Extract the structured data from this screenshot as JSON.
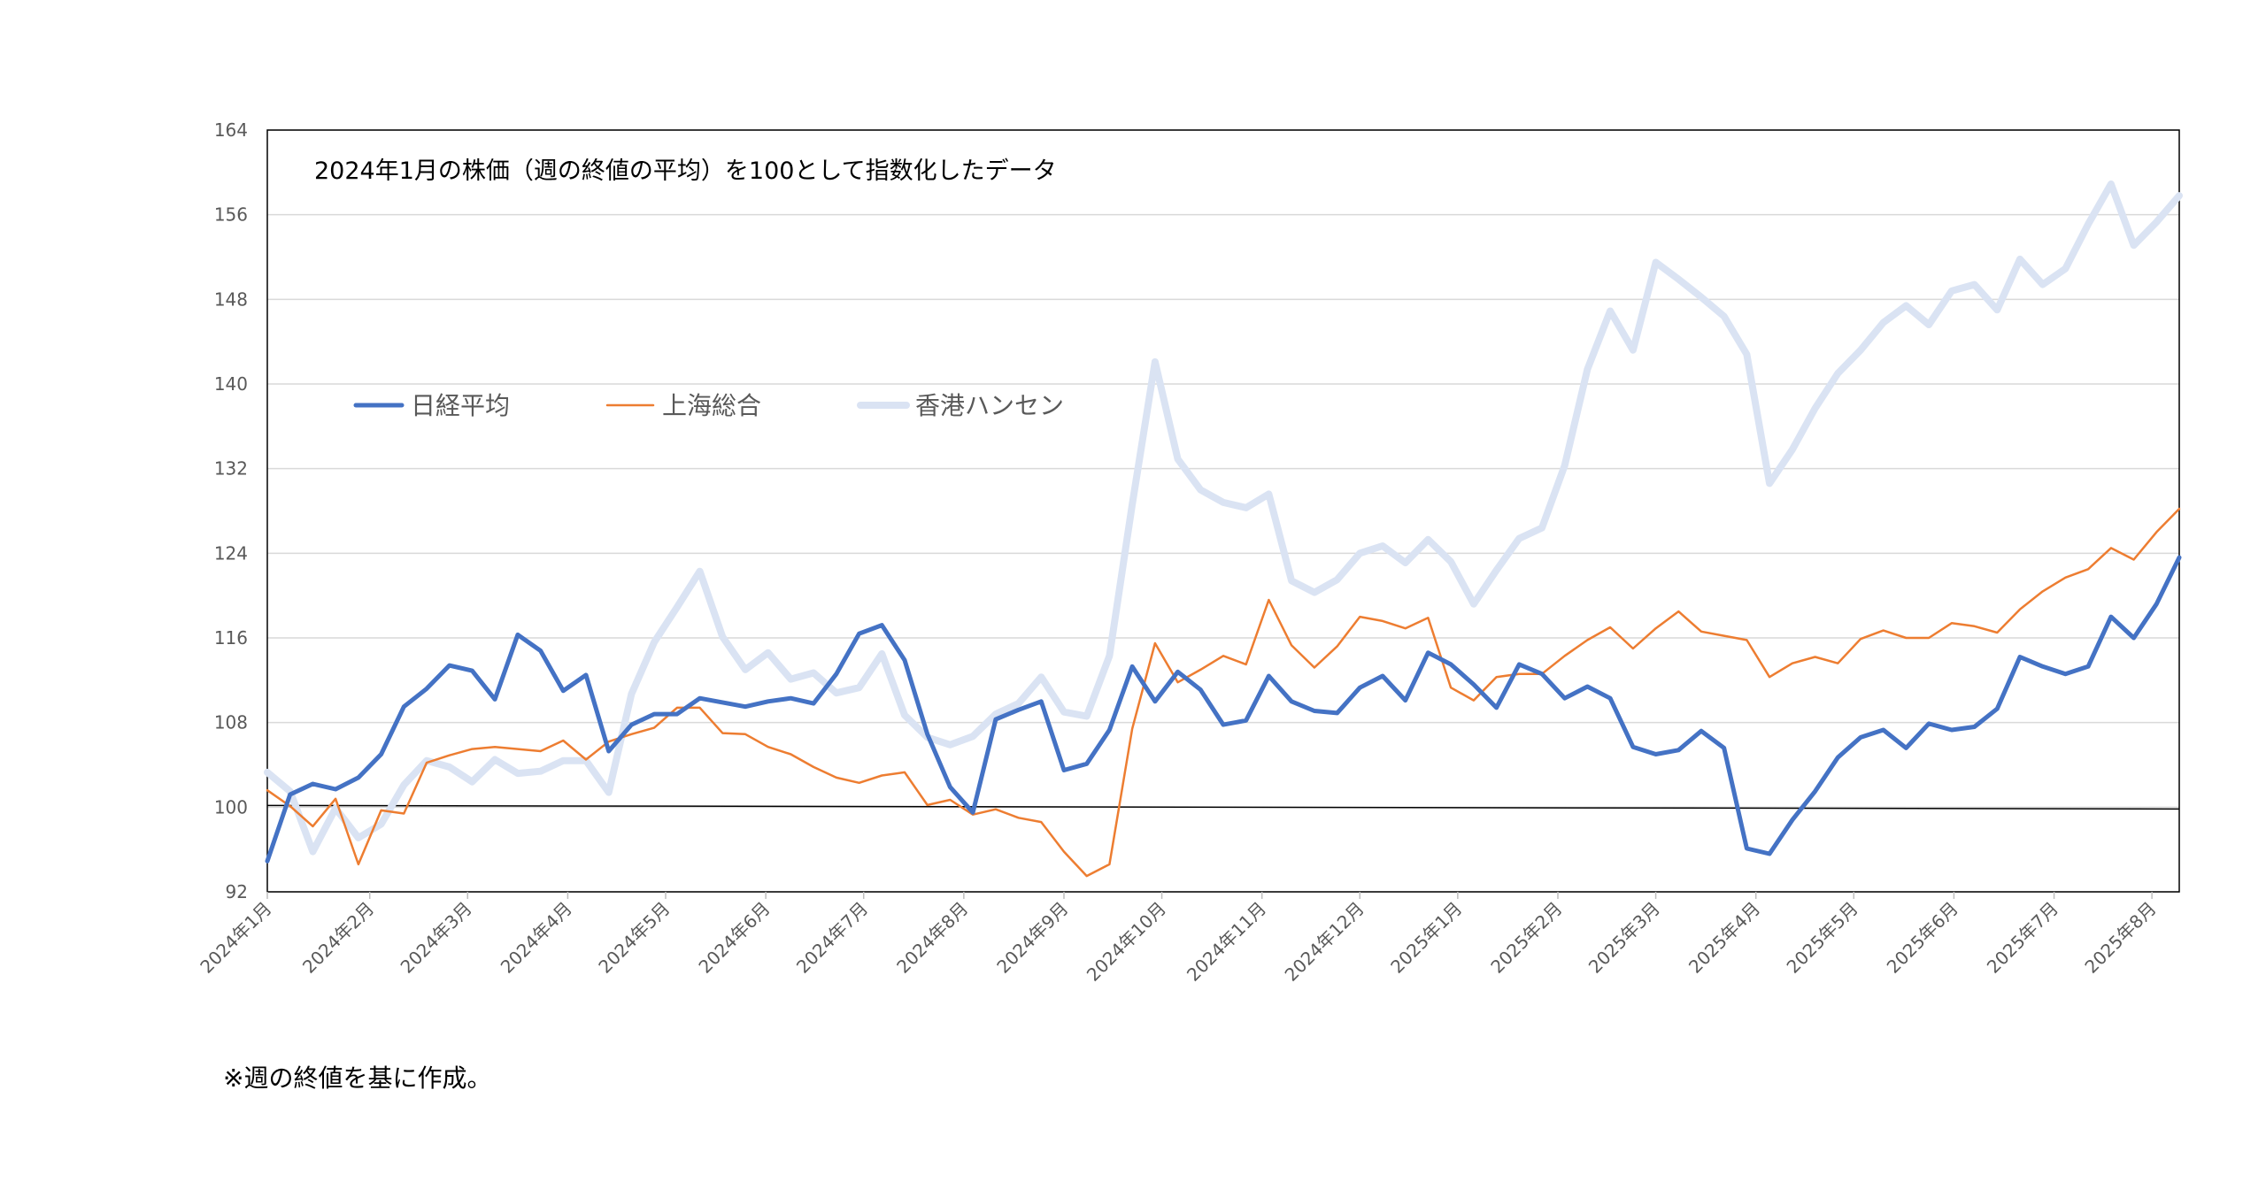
{
  "chart_data": {
    "type": "line",
    "title": "2024年1月の株価（週の終値の平均）を100として指数化したデータ",
    "ylim": [
      92,
      164
    ],
    "yticks": [
      92,
      100,
      108,
      116,
      124,
      132,
      140,
      148,
      156,
      164
    ],
    "grid": true,
    "legend_position": "upper-left",
    "reference_line": 100,
    "x_month_labels": [
      "2024年1月",
      "2024年2月",
      "2024年3月",
      "2024年4月",
      "2024年5月",
      "2024年6月",
      "2024年7月",
      "2024年8月",
      "2024年9月",
      "2024年10月",
      "2024年11月",
      "2024年12月",
      "2025年1月",
      "2025年2月",
      "2025年3月",
      "2025年4月",
      "2025年5月",
      "2025年6月",
      "2025年7月",
      "2025年8月"
    ],
    "x_month_week_index": [
      0,
      4.5,
      8.8,
      13.2,
      17.5,
      21.9,
      26.2,
      30.6,
      35,
      39.3,
      43.7,
      48,
      52.3,
      56.7,
      61,
      65.4,
      69.7,
      74.1,
      78.5,
      82.8
    ],
    "series": [
      {
        "name": "日経平均",
        "color": "#4472c4",
        "width": 5,
        "values": [
          94.9,
          101.2,
          102.2,
          101.7,
          102.8,
          105,
          109.5,
          111.2,
          113.4,
          112.9,
          110.2,
          116.3,
          114.8,
          111,
          112.5,
          105.3,
          107.8,
          108.8,
          108.8,
          110.3,
          109.9,
          109.5,
          110,
          110.3,
          109.8,
          112.6,
          116.4,
          117.2,
          113.9,
          106.9,
          101.9,
          99.5,
          108.3,
          109.2,
          110,
          103.5,
          104.1,
          107.3,
          113.3,
          110,
          112.8,
          111.1,
          107.8,
          108.2,
          112.4,
          110,
          109.1,
          108.9,
          111.3,
          112.4,
          110.1,
          114.6,
          113.5,
          111.6,
          109.4,
          113.5,
          112.6,
          110.3,
          111.4,
          110.3,
          105.7,
          105,
          105.4,
          107.2,
          105.6,
          96.1,
          95.6,
          98.8,
          101.5,
          104.7,
          106.6,
          107.3,
          105.6,
          107.9,
          107.3,
          107.6,
          109.3,
          114.2,
          113.3,
          112.6,
          113.3,
          118,
          116,
          119.2,
          123.6
        ]
      },
      {
        "name": "上海総合",
        "color": "#ed7d31",
        "width": 2.5,
        "values": [
          101.6,
          100.1,
          98.2,
          100.8,
          94.6,
          99.7,
          99.4,
          104.2,
          104.9,
          105.5,
          105.7,
          105.5,
          105.3,
          106.3,
          104.5,
          106.2,
          106.9,
          107.5,
          109.4,
          109.4,
          107,
          106.9,
          105.7,
          105,
          103.8,
          102.8,
          102.3,
          103,
          103.3,
          100.2,
          100.7,
          99.3,
          99.8,
          99,
          98.6,
          95.8,
          93.5,
          94.6,
          107.4,
          115.5,
          111.8,
          113,
          114.3,
          113.5,
          119.6,
          115.3,
          113.2,
          115.2,
          118,
          117.6,
          116.9,
          117.9,
          111.3,
          110.1,
          112.3,
          112.6,
          112.6,
          114.3,
          115.8,
          117,
          115,
          116.9,
          118.5,
          116.6,
          116.2,
          115.8,
          112.3,
          113.6,
          114.2,
          113.6,
          115.9,
          116.7,
          116,
          116,
          117.4,
          117.1,
          116.5,
          118.7,
          120.4,
          121.7,
          122.5,
          124.5,
          123.4,
          126,
          128.2
        ]
      },
      {
        "name": "香港ハンセン",
        "color": "#dae3f3",
        "width": 8,
        "values": [
          103.3,
          101.5,
          95.8,
          99.9,
          97.1,
          98.4,
          102.1,
          104.4,
          103.8,
          102.4,
          104.5,
          103.2,
          103.4,
          104.4,
          104.4,
          101.4,
          110.7,
          115.6,
          118.9,
          122.3,
          116.1,
          113,
          114.6,
          112.1,
          112.7,
          110.8,
          111.3,
          114.5,
          108.7,
          106.6,
          105.9,
          106.7,
          108.8,
          109.8,
          112.3,
          109,
          108.6,
          114.3,
          128.6,
          142.1,
          132.9,
          130,
          128.8,
          128.3,
          129.6,
          121.4,
          120.3,
          121.5,
          124,
          124.7,
          123.1,
          125.3,
          123.2,
          119.2,
          122.4,
          125.4,
          126.4,
          132.3,
          141.4,
          146.9,
          143.2,
          151.5,
          149.9,
          148.2,
          146.4,
          142.8,
          130.6,
          133.8,
          137.7,
          141,
          143.2,
          145.8,
          147.4,
          145.6,
          148.8,
          149.4,
          147,
          151.8,
          149.4,
          150.9,
          155.1,
          158.9,
          153.1,
          155.3,
          157.8
        ]
      }
    ]
  },
  "footnote": "※週の終値を基に作成。"
}
